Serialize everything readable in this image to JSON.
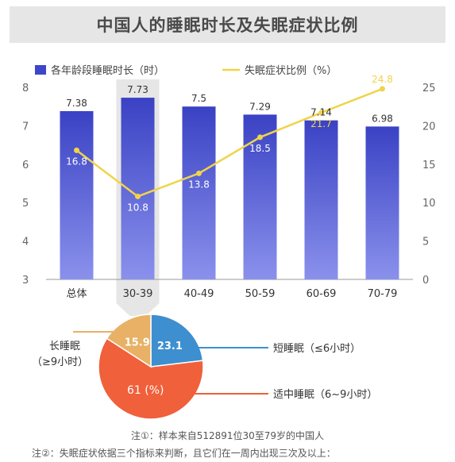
{
  "title": "中国人的睡眠时长及失眠症状比例",
  "chart_data": [
    {
      "type": "bar+line",
      "categories": [
        "总体",
        "30-39",
        "40-49",
        "50-59",
        "60-69",
        "70-79"
      ],
      "highlighted_category": "30-39",
      "legend": {
        "bar": "各年龄段睡眠时长（时）",
        "line": "失眠症状比例（%）",
        "placement": "top-left"
      },
      "series": [
        {
          "name": "各年龄段睡眠时长（时）",
          "type": "bar",
          "axis": "left",
          "values": [
            7.38,
            7.73,
            7.5,
            7.29,
            7.14,
            6.98
          ],
          "labels": [
            "7.38",
            "7.73",
            "7.5",
            "7.29",
            "7.14",
            "6.98"
          ]
        },
        {
          "name": "失眠症状比例（%）",
          "type": "line",
          "axis": "right",
          "values": [
            16.8,
            10.8,
            13.8,
            18.5,
            21.7,
            24.8
          ],
          "labels": [
            "16.8",
            "10.8",
            "13.8",
            "18.5",
            "21.7",
            "24.8"
          ]
        }
      ],
      "y_left": {
        "min": 3,
        "max": 8,
        "ticks": [
          "3",
          "4",
          "5",
          "6",
          "7",
          "8"
        ]
      },
      "y_right": {
        "min": 0,
        "max": 25,
        "ticks": [
          "0",
          "5",
          "10",
          "15",
          "20",
          "25"
        ]
      },
      "grid": false,
      "colors": {
        "bar": "#3d46c8",
        "bar_light": "#7e86e8",
        "line": "#f0d44a",
        "highlight": "#e6e6e6"
      }
    },
    {
      "type": "pie",
      "slices": [
        {
          "name": "短睡眠",
          "value": 23.1,
          "label": "23.1",
          "color": "#3d8fcf"
        },
        {
          "name": "适中睡眠",
          "value": 61,
          "label": "61 (%)",
          "color": "#f0603a"
        },
        {
          "name": "长睡眠",
          "value": 15.9,
          "label": "15.9",
          "color": "#e8b165"
        }
      ],
      "annotations": {
        "long": [
          "长睡眠",
          "（≥9小时）"
        ],
        "short": "短睡眠（≤6小时）",
        "moderate": "适中睡眠（6~9小时）"
      }
    }
  ],
  "notes": {
    "note1": "注①：样本来自512891位30至79岁的中国人",
    "note2": "注②：失眠症状依据三个指标来判断，且它们在一周内出现三次及以上："
  }
}
